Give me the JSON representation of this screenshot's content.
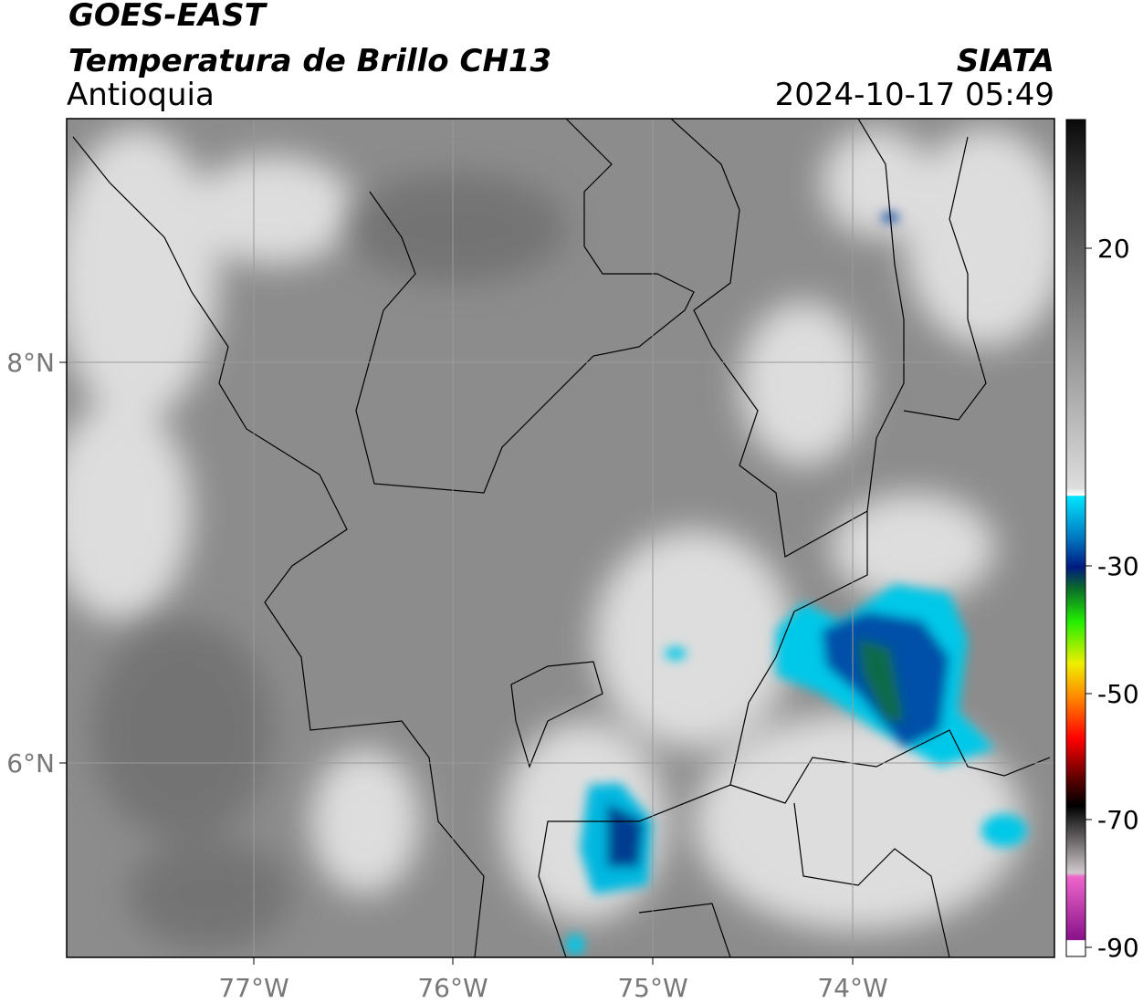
{
  "header": {
    "title": "GOES-EAST",
    "subtitle": "Temperatura de Brillo CH13",
    "region": "Antioquia",
    "source": "SIATA",
    "datetime": "2024-10-17 05:49"
  },
  "map": {
    "lon_labels": [
      "77°W",
      "76°W",
      "75°W",
      "74°W"
    ],
    "lat_labels": [
      "8°N",
      "6°N"
    ]
  },
  "colorbar": {
    "ticks": [
      20,
      -30,
      -50,
      -70,
      -90
    ]
  }
}
